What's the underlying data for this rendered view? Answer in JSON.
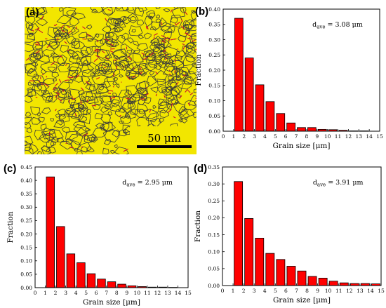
{
  "panels": {
    "a": "(a)",
    "b": "(b)",
    "c": "(c)",
    "d": "(d)"
  },
  "micrograph": {
    "scale_bar_label": "50 μm",
    "colors": {
      "grain": "#f2e600",
      "boundary": "#3a3a3a",
      "high_angle": "#c8102e"
    }
  },
  "chart_data": [
    {
      "panel": "b",
      "type": "bar",
      "x": [
        1.5,
        2.5,
        3.5,
        4.5,
        5.5,
        6.5,
        7.5,
        8.5,
        9.5,
        10.5,
        11.5,
        12.5,
        13.5
      ],
      "values": [
        0.37,
        0.24,
        0.152,
        0.097,
        0.058,
        0.027,
        0.012,
        0.012,
        0.006,
        0.005,
        0.003,
        0.001,
        0.001
      ],
      "xlabel": "Grain size [μm]",
      "ylabel": "Fraction",
      "annotation": "d_ave = 3.08 μm",
      "annotation_main": "d",
      "annotation_sub": "ave",
      "annotation_rest": " = 3.08 μm",
      "xlim": [
        0,
        15
      ],
      "ylim": [
        0,
        0.4
      ],
      "xticks": [
        "0",
        "1",
        "2",
        "3",
        "4",
        "5",
        "6",
        "7",
        "8",
        "9",
        "10",
        "11",
        "12",
        "13",
        "14",
        "15"
      ],
      "yticks": [
        "0.00",
        "0.05",
        "0.10",
        "0.15",
        "0.20",
        "0.25",
        "0.30",
        "0.35",
        "0.40"
      ],
      "bar_color": "#ff0000",
      "grid": false
    },
    {
      "panel": "c",
      "type": "bar",
      "x": [
        1.5,
        2.5,
        3.5,
        4.5,
        5.5,
        6.5,
        7.5,
        8.5,
        9.5,
        10.5,
        11.5,
        12.5,
        13.5
      ],
      "values": [
        0.413,
        0.228,
        0.126,
        0.093,
        0.052,
        0.032,
        0.022,
        0.013,
        0.007,
        0.004,
        0.002,
        0.002,
        0.001
      ],
      "xlabel": "Grain size [μm]",
      "ylabel": "Fraction",
      "annotation": "d_ave = 2.95 μm",
      "annotation_main": "d",
      "annotation_sub": "ave",
      "annotation_rest": " = 2.95 μm",
      "xlim": [
        0,
        15
      ],
      "ylim": [
        0,
        0.45
      ],
      "xticks": [
        "0",
        "1",
        "2",
        "3",
        "4",
        "5",
        "6",
        "7",
        "8",
        "9",
        "10",
        "11",
        "12",
        "13",
        "14",
        "15"
      ],
      "yticks": [
        "0.00",
        "0.05",
        "0.10",
        "0.15",
        "0.20",
        "0.25",
        "0.30",
        "0.35",
        "0.40",
        "0.45"
      ],
      "bar_color": "#ff0000",
      "grid": false
    },
    {
      "panel": "d",
      "type": "bar",
      "x": [
        1.5,
        2.5,
        3.5,
        4.5,
        5.5,
        6.5,
        7.5,
        8.5,
        9.5,
        10.5,
        11.5,
        12.5,
        13.5,
        14.5
      ],
      "values": [
        0.307,
        0.198,
        0.14,
        0.095,
        0.077,
        0.057,
        0.043,
        0.027,
        0.022,
        0.013,
        0.008,
        0.006,
        0.006,
        0.005
      ],
      "xlabel": "Grain size [μm]",
      "ylabel": "Fraction",
      "annotation": "d_ave = 3.91 μm",
      "annotation_main": "d",
      "annotation_sub": "ave",
      "annotation_rest": " = 3.91 μm",
      "xlim": [
        0,
        15
      ],
      "ylim": [
        0,
        0.35
      ],
      "xticks": [
        "0",
        "1",
        "2",
        "3",
        "4",
        "5",
        "6",
        "7",
        "8",
        "9",
        "10",
        "11",
        "12",
        "13",
        "14",
        "15"
      ],
      "yticks": [
        "0.00",
        "0.05",
        "0.10",
        "0.15",
        "0.20",
        "0.25",
        "0.30",
        "0.35"
      ],
      "bar_color": "#ff0000",
      "grid": false
    }
  ]
}
